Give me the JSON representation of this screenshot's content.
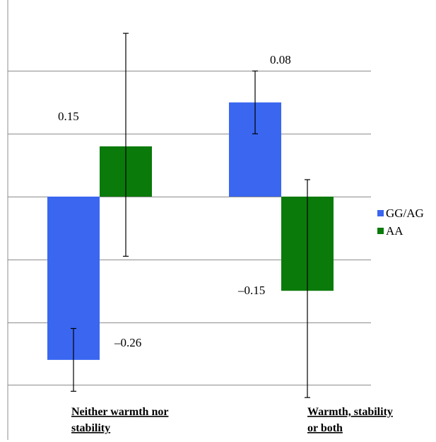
{
  "chart_data": {
    "type": "bar",
    "categories": [
      [
        "Neither warmth nor",
        "stability"
      ],
      [
        "Warmth, stability",
        "or both"
      ]
    ],
    "series": [
      {
        "name": "GG/AG",
        "color": "#3a66f0",
        "values": [
          -0.26,
          0.15
        ],
        "labels": [
          "–0.26",
          "0.15"
        ],
        "error_low": [
          -0.31,
          0.1
        ],
        "error_high": [
          -0.21,
          0.2
        ]
      },
      {
        "name": "AA",
        "color": "#0a7a0a",
        "values": [
          0.08,
          -0.15
        ],
        "labels": [
          "0.08",
          "–0.15"
        ],
        "error_low": [
          -0.095,
          -0.32
        ],
        "error_high": [
          0.26,
          0.027
        ]
      }
    ],
    "ylim": [
      -0.3,
      0.2
    ],
    "grid": true,
    "legend": "right"
  }
}
